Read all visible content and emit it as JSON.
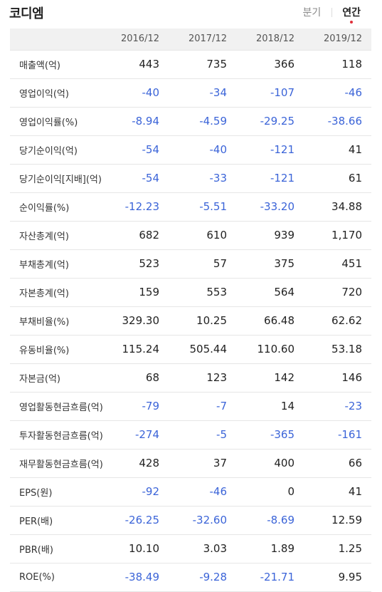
{
  "header": {
    "title": "코디엠",
    "tabs": [
      {
        "label": "분기",
        "active": false
      },
      {
        "label": "연간",
        "active": true
      }
    ]
  },
  "colors": {
    "negative": "#3b64d8",
    "accent_dot": "#e0303a",
    "header_bg": "#f1f1f1"
  },
  "table": {
    "columns": [
      "2016/12",
      "2017/12",
      "2018/12",
      "2019/12"
    ],
    "rows": [
      {
        "label": "매출액(억)",
        "values": [
          "443",
          "735",
          "366",
          "118"
        ]
      },
      {
        "label": "영업이익(억)",
        "values": [
          "-40",
          "-34",
          "-107",
          "-46"
        ]
      },
      {
        "label": "영업이익률(%)",
        "values": [
          "-8.94",
          "-4.59",
          "-29.25",
          "-38.66"
        ]
      },
      {
        "label": "당기순이익(억)",
        "values": [
          "-54",
          "-40",
          "-121",
          "41"
        ]
      },
      {
        "label": "당기순이익[지배](억)",
        "values": [
          "-54",
          "-33",
          "-121",
          "61"
        ]
      },
      {
        "label": "순이익률(%)",
        "values": [
          "-12.23",
          "-5.51",
          "-33.20",
          "34.88"
        ]
      },
      {
        "label": "자산총계(억)",
        "values": [
          "682",
          "610",
          "939",
          "1,170"
        ]
      },
      {
        "label": "부채총계(억)",
        "values": [
          "523",
          "57",
          "375",
          "451"
        ]
      },
      {
        "label": "자본총계(억)",
        "values": [
          "159",
          "553",
          "564",
          "720"
        ]
      },
      {
        "label": "부채비율(%)",
        "values": [
          "329.30",
          "10.25",
          "66.48",
          "62.62"
        ]
      },
      {
        "label": "유동비율(%)",
        "values": [
          "115.24",
          "505.44",
          "110.60",
          "53.18"
        ]
      },
      {
        "label": "자본금(억)",
        "values": [
          "68",
          "123",
          "142",
          "146"
        ]
      },
      {
        "label": "영업활동현금흐름(억)",
        "values": [
          "-79",
          "-7",
          "14",
          "-23"
        ]
      },
      {
        "label": "투자활동현금흐름(억)",
        "values": [
          "-274",
          "-5",
          "-365",
          "-161"
        ]
      },
      {
        "label": "재무활동현금흐름(억)",
        "values": [
          "428",
          "37",
          "400",
          "66"
        ]
      },
      {
        "label": "EPS(원)",
        "values": [
          "-92",
          "-46",
          "0",
          "41"
        ]
      },
      {
        "label": "PER(배)",
        "values": [
          "-26.25",
          "-32.60",
          "-8.69",
          "12.59"
        ]
      },
      {
        "label": "PBR(배)",
        "values": [
          "10.10",
          "3.03",
          "1.89",
          "1.25"
        ]
      },
      {
        "label": "ROE(%)",
        "values": [
          "-38.49",
          "-9.28",
          "-21.71",
          "9.95"
        ]
      }
    ]
  }
}
